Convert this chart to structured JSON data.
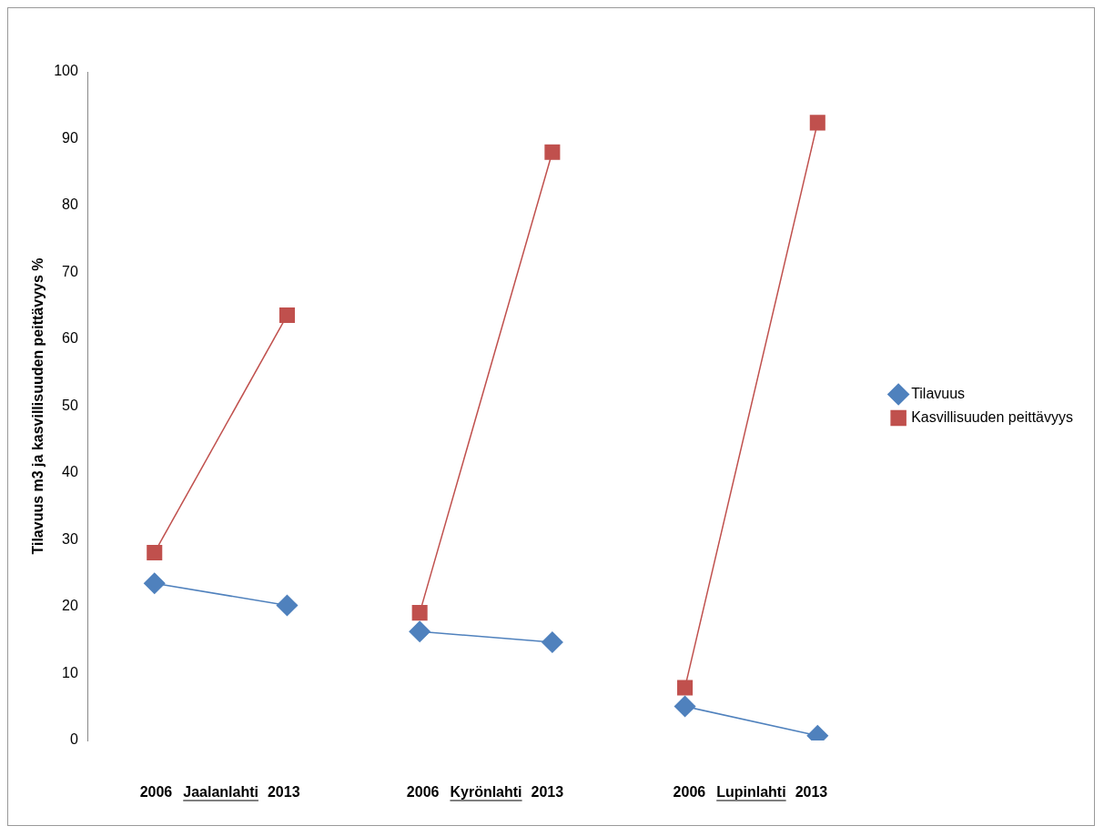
{
  "chart_data": {
    "type": "line",
    "ylabel": "Tilavuus m3 ja kasvillisuuden peittävyys %",
    "categories": [
      "2006",
      "2013",
      "2006",
      "2013",
      "2006",
      "2013"
    ],
    "series": [
      {
        "name": "Tilavuus",
        "color": "#4f81bd",
        "marker": "diamond",
        "values": [
          23.5,
          20.2,
          null,
          null,
          null,
          null
        ]
      },
      {
        "color": "#4f81bd",
        "marker": "diamond",
        "values": [
          null,
          null,
          16.3,
          14.7,
          null,
          null
        ]
      },
      {
        "color": "#4f81bd",
        "marker": "diamond",
        "values": [
          null,
          null,
          null,
          null,
          5.1,
          0.7
        ]
      },
      {
        "name": "Kasvillisuuden peittävyys",
        "color": "#c0504d",
        "marker": "square",
        "values": [
          28.1,
          63.6,
          null,
          null,
          null,
          null
        ]
      },
      {
        "color": "#c0504d",
        "marker": "square",
        "values": [
          null,
          null,
          19.1,
          88,
          null,
          null
        ]
      },
      {
        "color": "#c0504d",
        "marker": "square",
        "values": [
          null,
          null,
          null,
          null,
          7.9,
          92.4
        ]
      }
    ],
    "annotations": [
      "Jaalanlahti",
      "Kyrönlahti",
      "Lupinlahti"
    ],
    "ylim": [
      0,
      100
    ],
    "yticks": [
      0,
      10,
      20,
      30,
      40,
      50,
      60,
      70,
      80,
      90,
      100
    ],
    "grid": false,
    "legend": "right",
    "line_style": "solid"
  }
}
